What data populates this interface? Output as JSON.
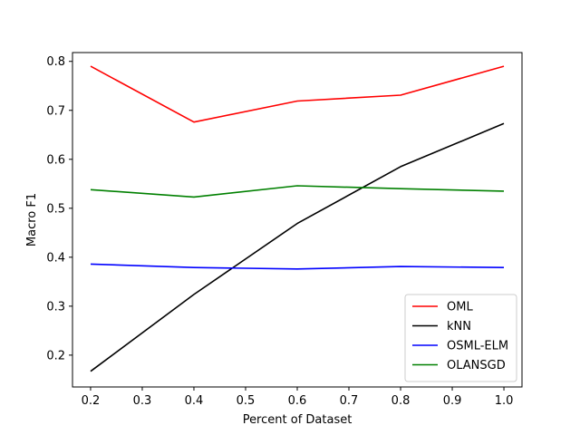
{
  "chart_data": {
    "type": "line",
    "title": "",
    "xlabel": "Percent of Dataset",
    "ylabel": "Macro F1",
    "x": [
      0.2,
      0.4,
      0.6,
      0.8,
      1.0
    ],
    "xlim": [
      0.165,
      1.035
    ],
    "ylim": [
      0.135,
      0.818
    ],
    "xticks": [
      "0.2",
      "0.3",
      "0.4",
      "0.5",
      "0.6",
      "0.7",
      "0.8",
      "0.9",
      "1.0"
    ],
    "yticks": [
      "0.2",
      "0.3",
      "0.4",
      "0.5",
      "0.6",
      "0.7",
      "0.8"
    ],
    "grid": false,
    "legend_position": "lower right",
    "series": [
      {
        "name": "OML",
        "color": "#ff0000",
        "values": [
          0.79,
          0.676,
          0.719,
          0.731,
          0.79
        ]
      },
      {
        "name": "kNN",
        "color": "#000000",
        "values": [
          0.167,
          0.324,
          0.469,
          0.585,
          0.673
        ]
      },
      {
        "name": "OSML-ELM",
        "color": "#0000ff",
        "values": [
          0.386,
          0.379,
          0.376,
          0.381,
          0.379
        ]
      },
      {
        "name": "OLANSGD",
        "color": "#008000",
        "values": [
          0.538,
          0.523,
          0.546,
          0.54,
          0.535
        ]
      }
    ]
  }
}
